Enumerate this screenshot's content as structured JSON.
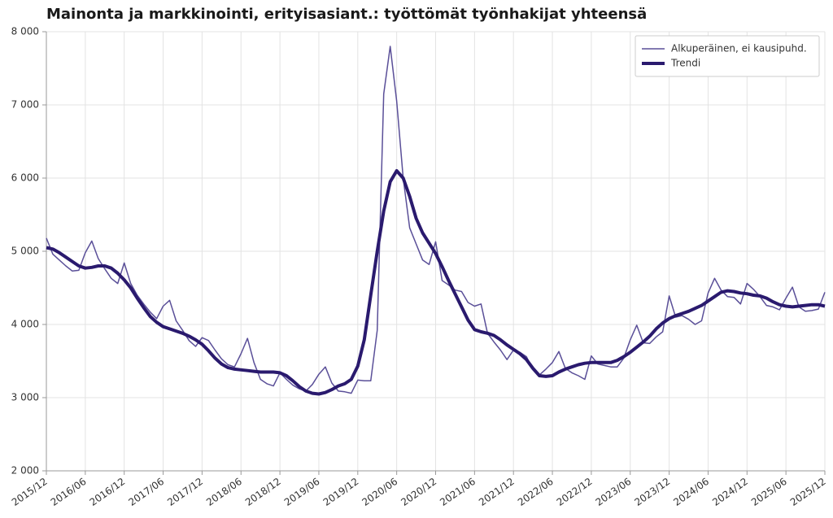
{
  "chart_data": {
    "type": "line",
    "title": "Mainonta ja markkinointi, erityisasiant.: työttömät työnhakijat yhteensä",
    "categories": [
      "2015/12",
      null,
      null,
      null,
      null,
      null,
      "2016/06",
      null,
      null,
      null,
      null,
      null,
      "2016/12",
      null,
      null,
      null,
      null,
      null,
      "2017/06",
      null,
      null,
      null,
      null,
      null,
      "2017/12",
      null,
      null,
      null,
      null,
      null,
      "2018/06",
      null,
      null,
      null,
      null,
      null,
      "2018/12",
      null,
      null,
      null,
      null,
      null,
      "2019/06",
      null,
      null,
      null,
      null,
      null,
      "2019/12",
      null,
      null,
      null,
      null,
      null,
      "2020/06",
      null,
      null,
      null,
      null,
      null,
      "2020/12",
      null,
      null,
      null,
      null,
      null,
      "2021/06",
      null,
      null,
      null,
      null,
      null,
      "2021/12",
      null,
      null,
      null,
      null,
      null,
      "2022/06",
      null,
      null,
      null,
      null,
      null,
      "2022/12",
      null,
      null,
      null,
      null,
      null,
      "2023/06",
      null,
      null,
      null,
      null,
      null,
      "2023/12",
      null,
      null,
      null,
      null,
      null,
      "2024/06",
      null,
      null,
      null,
      null,
      null,
      "2024/12",
      null,
      null,
      null,
      null,
      null,
      "2025/06",
      null,
      null,
      null,
      null,
      null,
      "2025/12"
    ],
    "series": [
      {
        "name": "Alkuperäinen, ei kausipuhd.",
        "color": "#5a4f98",
        "width": 1.5,
        "values": [
          5180,
          4960,
          4880,
          4800,
          4730,
          4740,
          4980,
          5140,
          4900,
          4760,
          4630,
          4560,
          4840,
          4560,
          4400,
          4280,
          4170,
          4080,
          4250,
          4330,
          4050,
          3920,
          3780,
          3700,
          3820,
          3780,
          3650,
          3530,
          3450,
          3420,
          3600,
          3810,
          3480,
          3250,
          3190,
          3160,
          3340,
          3250,
          3170,
          3120,
          3090,
          3180,
          3320,
          3420,
          3200,
          3090,
          3080,
          3060,
          3240,
          3230,
          3230,
          3920,
          7150,
          7800,
          7050,
          6000,
          5320,
          5100,
          4880,
          4820,
          5130,
          4600,
          4540,
          4470,
          4450,
          4300,
          4250,
          4280,
          3880,
          3760,
          3650,
          3520,
          3650,
          3620,
          3560,
          3380,
          3310,
          3390,
          3480,
          3630,
          3400,
          3340,
          3300,
          3250,
          3570,
          3460,
          3440,
          3420,
          3420,
          3540,
          3790,
          3990,
          3750,
          3740,
          3830,
          3900,
          4390,
          4100,
          4120,
          4070,
          4000,
          4050,
          4430,
          4630,
          4470,
          4380,
          4370,
          4280,
          4560,
          4480,
          4380,
          4260,
          4240,
          4200,
          4360,
          4510,
          4240,
          4180,
          4190,
          4210,
          4440
        ]
      },
      {
        "name": "Trendi",
        "color": "#2a1a6e",
        "width": 4,
        "values": [
          5050,
          5030,
          4980,
          4920,
          4860,
          4800,
          4770,
          4780,
          4800,
          4800,
          4770,
          4700,
          4610,
          4500,
          4360,
          4230,
          4110,
          4030,
          3970,
          3940,
          3910,
          3880,
          3840,
          3790,
          3730,
          3640,
          3540,
          3460,
          3410,
          3390,
          3380,
          3370,
          3360,
          3350,
          3350,
          3350,
          3340,
          3300,
          3230,
          3150,
          3090,
          3060,
          3050,
          3070,
          3110,
          3160,
          3190,
          3250,
          3430,
          3790,
          4400,
          5000,
          5550,
          5950,
          6100,
          6000,
          5750,
          5450,
          5250,
          5110,
          4970,
          4790,
          4600,
          4420,
          4240,
          4060,
          3930,
          3900,
          3880,
          3850,
          3790,
          3720,
          3660,
          3600,
          3520,
          3400,
          3300,
          3290,
          3300,
          3350,
          3390,
          3420,
          3450,
          3470,
          3480,
          3480,
          3480,
          3480,
          3510,
          3560,
          3620,
          3690,
          3760,
          3840,
          3940,
          4020,
          4080,
          4120,
          4150,
          4180,
          4220,
          4260,
          4320,
          4380,
          4440,
          4460,
          4450,
          4430,
          4420,
          4400,
          4390,
          4360,
          4310,
          4270,
          4250,
          4240,
          4250,
          4260,
          4270,
          4270,
          4250
        ]
      }
    ],
    "ylim": [
      2000,
      8000
    ],
    "yticks": [
      {
        "value": 2000,
        "label": "2 000"
      },
      {
        "value": 3000,
        "label": "3 000"
      },
      {
        "value": 4000,
        "label": "4 000"
      },
      {
        "value": 5000,
        "label": "5 000"
      },
      {
        "value": 6000,
        "label": "6 000"
      },
      {
        "value": 7000,
        "label": "7 000"
      },
      {
        "value": 8000,
        "label": "8 000"
      }
    ],
    "grid": true,
    "legend": "upper right"
  }
}
